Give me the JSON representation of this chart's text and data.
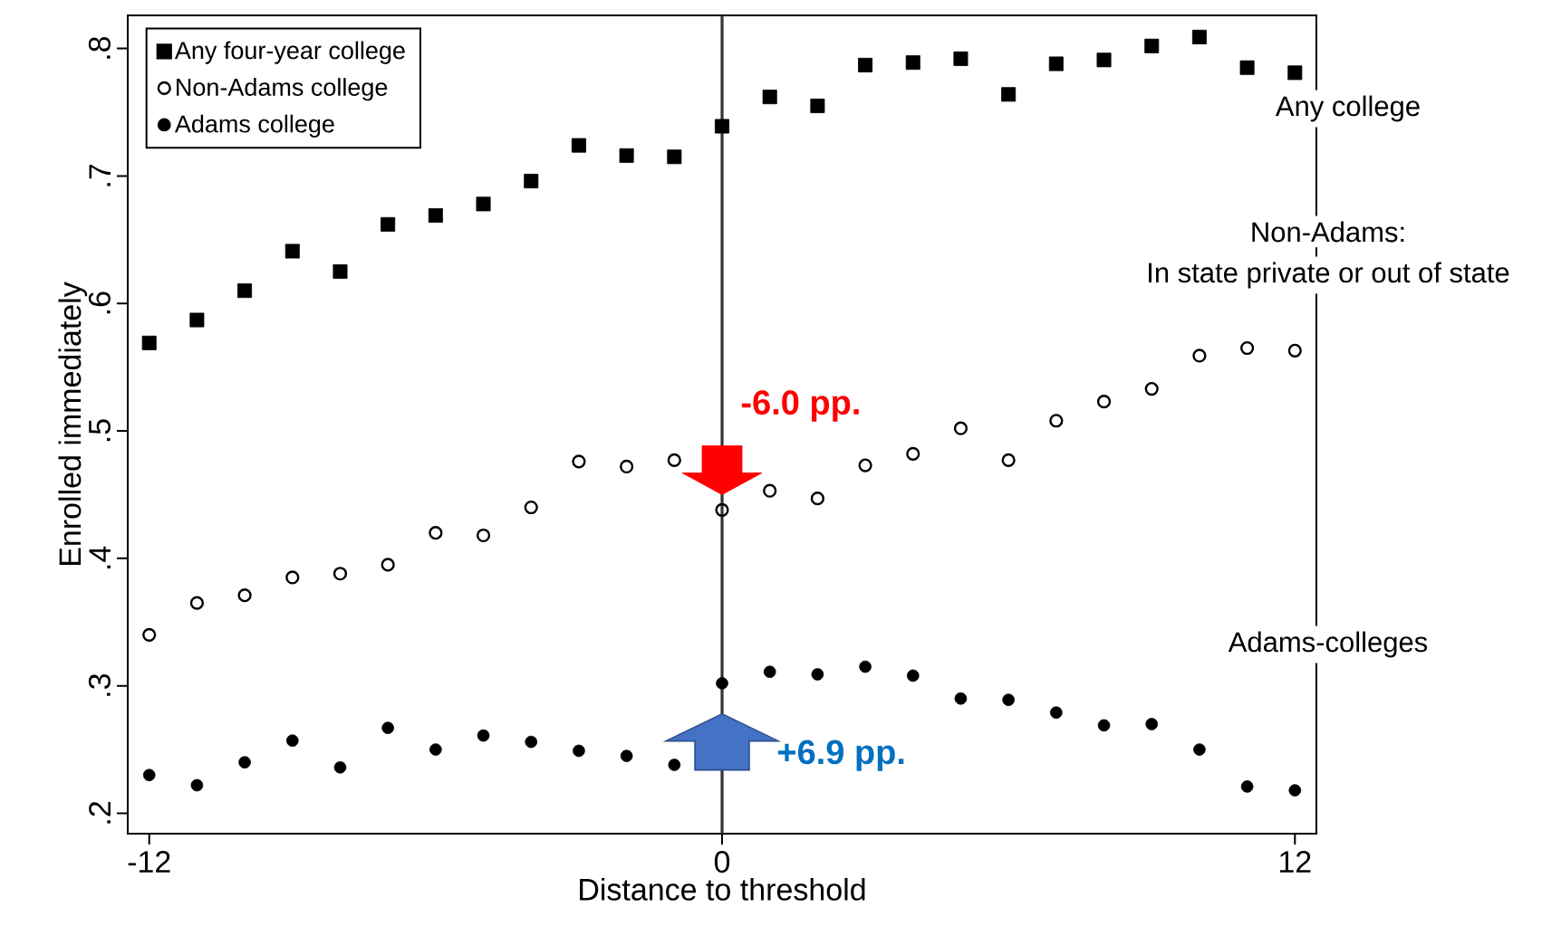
{
  "chart_data": {
    "type": "scatter",
    "xlabel": "Distance to threshold",
    "ylabel": "Enrolled immediately",
    "x": [
      -12,
      -11,
      -10,
      -9,
      -8,
      -7,
      -6,
      -5,
      -4,
      -3,
      -2,
      -1,
      0,
      1,
      2,
      3,
      4,
      5,
      6,
      7,
      8,
      9,
      10,
      11,
      12
    ],
    "series": [
      {
        "name": "Any four-year college",
        "color": "#000000",
        "marker": "square",
        "values": [
          0.569,
          0.587,
          0.61,
          0.641,
          0.625,
          0.662,
          0.669,
          0.678,
          0.696,
          0.724,
          0.716,
          0.715,
          0.739,
          0.762,
          0.755,
          0.787,
          0.789,
          0.792,
          0.764,
          0.788,
          0.791,
          0.802,
          0.809,
          0.785,
          0.781
        ]
      },
      {
        "name": "Non-Adams college",
        "color": "#000000",
        "marker": "circle",
        "values": [
          0.34,
          0.365,
          0.371,
          0.385,
          0.388,
          0.395,
          0.42,
          0.418,
          0.44,
          0.476,
          0.472,
          0.477,
          0.438,
          0.453,
          0.447,
          0.473,
          0.482,
          0.502,
          0.477,
          0.508,
          0.523,
          0.533,
          0.559,
          0.565,
          0.563
        ]
      },
      {
        "name": "Adams college",
        "color": "#000000",
        "marker": "circle",
        "values": [
          0.23,
          0.222,
          0.24,
          0.257,
          0.236,
          0.267,
          0.25,
          0.261,
          0.256,
          0.249,
          0.245,
          0.238,
          0.302,
          0.311,
          0.309,
          0.315,
          0.308,
          0.29,
          0.289,
          0.279,
          0.269,
          0.27,
          0.25,
          0.221,
          0.218
        ]
      }
    ],
    "xlim": [
      -12.45,
      12.45
    ],
    "ylim": [
      0.184,
      0.826
    ],
    "xticks": [
      -12,
      0,
      12
    ],
    "yticks": [
      {
        "value": 0.2,
        "label": ".2"
      },
      {
        "value": 0.3,
        "label": ".3"
      },
      {
        "value": 0.4,
        "label": ".4"
      },
      {
        "value": 0.5,
        "label": ".5"
      },
      {
        "value": 0.6,
        "label": ".6"
      },
      {
        "value": 0.7,
        "label": ".7"
      },
      {
        "value": 0.8,
        "label": ".8"
      }
    ],
    "ref_lines": [
      {
        "axis": "x",
        "value": 0,
        "color": "#333333"
      }
    ],
    "legend": "top left",
    "grid": false,
    "annotations": [
      {
        "text": "-6.0 pp.",
        "x": 0,
        "y": 0.45
      },
      {
        "text": "+6.9 pp.",
        "x": 0,
        "y": 0.278
      },
      "Any college",
      "Non-Adams:",
      "In state private or out of state",
      "Adams-colleges"
    ]
  }
}
